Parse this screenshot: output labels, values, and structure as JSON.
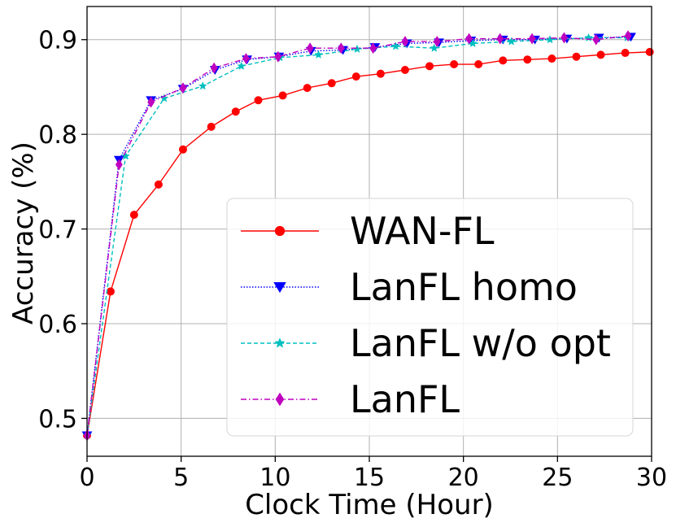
{
  "chart_data": {
    "type": "line",
    "title": "",
    "xlabel": "Clock Time (Hour)",
    "ylabel": "Accuracy (%)",
    "xlim": [
      0,
      30
    ],
    "ylim": [
      0.46,
      0.935
    ],
    "xticks": [
      0,
      5,
      10,
      15,
      20,
      25,
      30
    ],
    "xtick_labels": [
      "0",
      "5",
      "10",
      "15",
      "20",
      "25",
      "30"
    ],
    "yticks": [
      0.5,
      0.6,
      0.7,
      0.8,
      0.9
    ],
    "ytick_labels": [
      "0.5",
      "0.6",
      "0.7",
      "0.8",
      "0.9"
    ],
    "grid": true,
    "legend_position": "lower-right",
    "series": [
      {
        "name": "WAN-FL",
        "color": "#ff0000",
        "marker": "circle",
        "dash": "solid",
        "x": [
          0,
          1.25,
          2.5,
          3.8,
          5.1,
          6.6,
          7.9,
          9.1,
          10.4,
          11.7,
          13.0,
          14.3,
          15.6,
          16.9,
          18.2,
          19.5,
          20.8,
          22.1,
          23.4,
          24.7,
          26.0,
          27.3,
          28.6,
          29.9
        ],
        "y": [
          0.482,
          0.634,
          0.715,
          0.747,
          0.784,
          0.808,
          0.824,
          0.836,
          0.841,
          0.849,
          0.854,
          0.861,
          0.864,
          0.868,
          0.872,
          0.874,
          0.874,
          0.878,
          0.879,
          0.88,
          0.882,
          0.884,
          0.886,
          0.887
        ]
      },
      {
        "name": "LanFL homo",
        "color": "#0000ff",
        "marker": "triangle-down",
        "dash": "dotted",
        "x": [
          0,
          1.7,
          3.4,
          5.1,
          6.8,
          8.5,
          10.2,
          11.9,
          13.6,
          15.3,
          17.0,
          18.7,
          20.4,
          22.1,
          23.8,
          25.5,
          27.2,
          28.9
        ],
        "y": [
          0.482,
          0.773,
          0.836,
          0.848,
          0.868,
          0.879,
          0.882,
          0.888,
          0.889,
          0.892,
          0.896,
          0.897,
          0.899,
          0.9,
          0.9,
          0.901,
          0.902,
          0.903
        ]
      },
      {
        "name": "LanFL w/o opt",
        "color": "#00bfbf",
        "marker": "star",
        "dash": "dashed",
        "x": [
          0,
          2.05,
          4.1,
          6.15,
          8.2,
          10.25,
          12.3,
          14.35,
          16.4,
          18.45,
          20.5,
          22.55,
          24.6,
          26.65,
          28.7
        ],
        "y": [
          0.482,
          0.777,
          0.838,
          0.851,
          0.872,
          0.881,
          0.884,
          0.89,
          0.893,
          0.891,
          0.896,
          0.898,
          0.9,
          0.902,
          0.902
        ]
      },
      {
        "name": "LanFL",
        "color": "#bf00bf",
        "marker": "diamond",
        "dash": "dashdot",
        "x": [
          0,
          1.7,
          3.4,
          5.1,
          6.75,
          8.45,
          10.15,
          11.85,
          13.5,
          15.2,
          16.9,
          18.6,
          20.3,
          21.95,
          23.65,
          25.35,
          27.05,
          28.75
        ],
        "y": [
          0.482,
          0.768,
          0.834,
          0.849,
          0.87,
          0.88,
          0.882,
          0.891,
          0.891,
          0.891,
          0.898,
          0.898,
          0.901,
          0.901,
          0.901,
          0.902,
          0.9,
          0.904
        ]
      }
    ]
  }
}
